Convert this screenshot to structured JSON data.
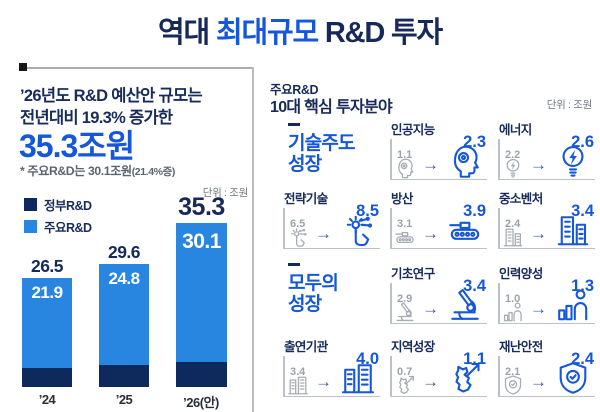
{
  "title": {
    "pre": "역대",
    "highlight": "최대규모",
    "post": "R&D 투자"
  },
  "colors": {
    "navy_text": "#16295A",
    "accent_blue": "#1557DB",
    "bar_blue": "#2885E0",
    "bar_navy": "#0E2A5C",
    "frame_gray": "#ABABAB"
  },
  "left_panel": {
    "headline_line1": "’26년도 R&D 예산안 규모는",
    "headline_line2": "전년대비 19.3% 증가한",
    "headline_value": "35.3조원",
    "note": "* 주요R&D는 30.1조원",
    "note_paren": "(21.4%증)",
    "unit_label": "단위 : 조원",
    "legend": [
      {
        "label": "정부R&D",
        "color": "#0E2A5C"
      },
      {
        "label": "주요R&D",
        "color": "#2885E0"
      }
    ],
    "bars": [
      {
        "category": "’24",
        "total": "26.5",
        "major": "21.9"
      },
      {
        "category": "’25",
        "total": "29.6",
        "major": "24.8"
      },
      {
        "category": "’26(안)",
        "total": "35.3",
        "major": "30.1"
      }
    ]
  },
  "right_panel": {
    "header_line1": "주요R&D",
    "header_line2": "10대 핵심 투자분야",
    "unit_label": "단위 : 조원",
    "sections": [
      {
        "line1": "기술주도",
        "line2": "성장"
      },
      {
        "line1": "모두의",
        "line2": "성장"
      }
    ],
    "items": [
      {
        "label": "인공지능",
        "before": "1.1",
        "after": "2.3",
        "icon": "ai-head-icon"
      },
      {
        "label": "에너지",
        "before": "2.2",
        "after": "2.6",
        "icon": "bulb-icon"
      },
      {
        "label": "전략기술",
        "before": "6.5",
        "after": "8.5",
        "icon": "touch-tech-icon"
      },
      {
        "label": "방산",
        "before": "3.1",
        "after": "3.9",
        "icon": "tank-icon"
      },
      {
        "label": "중소벤처",
        "before": "2.4",
        "after": "3.4",
        "icon": "buildings-icon"
      },
      {
        "label": "기초연구",
        "before": "2.9",
        "after": "3.4",
        "icon": "microscope-icon"
      },
      {
        "label": "인력양성",
        "before": "1.0",
        "after": "1.3",
        "icon": "person-growth-icon"
      },
      {
        "label": "출연기관",
        "before": "3.4",
        "after": "4.0",
        "icon": "institution-building-icon"
      },
      {
        "label": "지역성장",
        "before": "0.7",
        "after": "1.1",
        "icon": "korea-map-arrow-icon"
      },
      {
        "label": "재난안전",
        "before": "2.1",
        "after": "2.4",
        "icon": "shield-check-icon"
      }
    ]
  },
  "chart_data": [
    {
      "type": "bar",
      "stacked": true,
      "title": "역대 최대규모 R&D 투자 — ’26년도 R&D 예산안 35.3조원 (전년대비 19.3% 증가)",
      "unit": "조원",
      "categories": [
        "’24",
        "’25",
        "’26(안)"
      ],
      "series": [
        {
          "name": "정부R&D(주요R&D 외)",
          "values": [
            4.6,
            4.8,
            5.2
          ]
        },
        {
          "name": "주요R&D",
          "values": [
            21.9,
            24.8,
            30.1
          ]
        }
      ],
      "totals": [
        26.5,
        29.6,
        35.3
      ],
      "annotations": [
        "주요R&D는 30.1조원(21.4%증)"
      ],
      "legend_position": "top-left",
      "grid": false,
      "ylim": [
        0,
        36
      ]
    },
    {
      "type": "table",
      "title": "주요R&D 10대 핵심 투자분야",
      "unit": "조원",
      "groups": [
        {
          "name": "기술주도 성장",
          "rows": [
            [
              "인공지능",
              1.1,
              2.3
            ],
            [
              "에너지",
              2.2,
              2.6
            ],
            [
              "전략기술",
              6.5,
              8.5
            ],
            [
              "방산",
              3.1,
              3.9
            ],
            [
              "중소벤처",
              2.4,
              3.4
            ]
          ]
        },
        {
          "name": "모두의 성장",
          "rows": [
            [
              "기초연구",
              2.9,
              3.4
            ],
            [
              "인력양성",
              1.0,
              1.3
            ],
            [
              "출연기관",
              3.4,
              4.0
            ],
            [
              "지역성장",
              0.7,
              1.1
            ],
            [
              "재난안전",
              2.1,
              2.4
            ]
          ]
        }
      ]
    }
  ]
}
